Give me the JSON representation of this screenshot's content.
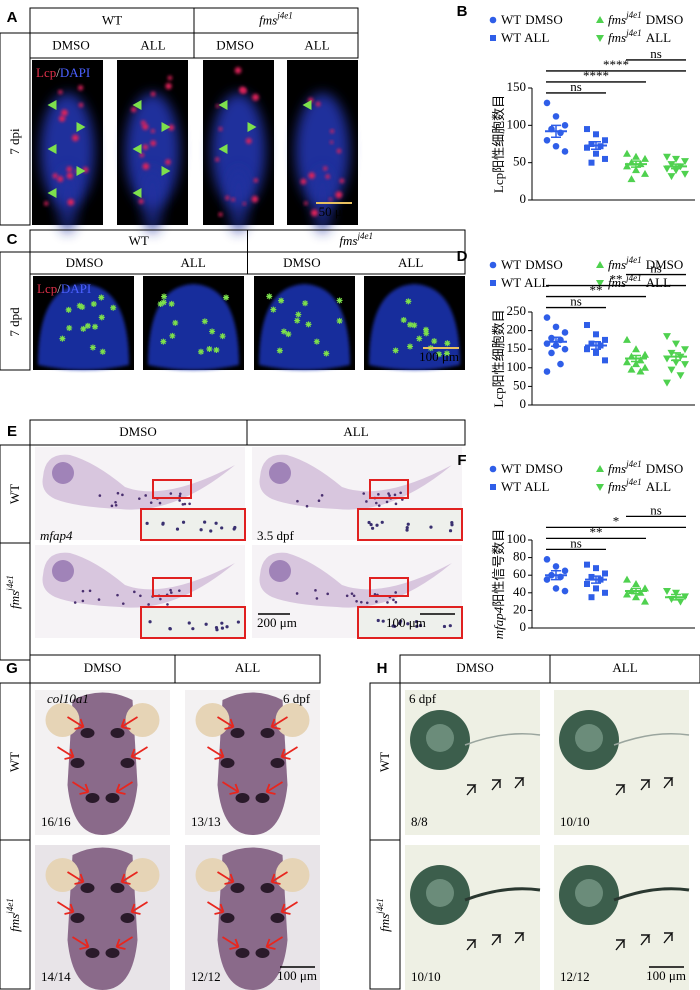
{
  "panel_A": {
    "label": "A",
    "groups": [
      {
        "genotype": "WT"
      },
      {
        "genotype": "fms",
        "allele": "j4e1"
      }
    ],
    "treatments": [
      "DMSO",
      "ALL",
      "DMSO",
      "ALL"
    ],
    "timepoint": "7 dpi",
    "stain": {
      "lcp": "Lcp",
      "sep": "/",
      "dapi": "DAPI"
    },
    "scale_bar": "50 μm"
  },
  "panel_C": {
    "label": "C",
    "groups": [
      {
        "genotype": "WT"
      },
      {
        "genotype": "fms",
        "allele": "j4e1"
      }
    ],
    "treatments": [
      "DMSO",
      "ALL",
      "DMSO",
      "ALL"
    ],
    "timepoint": "7 dpd",
    "stain": {
      "lcp": "Lcp",
      "sep": "/",
      "dapi": "DAPI"
    },
    "scale_bar": "100 μm"
  },
  "panel_E": {
    "label": "E",
    "treatments": [
      "DMSO",
      "ALL"
    ],
    "rows": [
      {
        "genotype": "WT"
      },
      {
        "genotype": "fms",
        "allele": "j4e1"
      }
    ],
    "probe": "mfap4",
    "stage": "3.5 dpf",
    "scale_bars": [
      "200 μm",
      "100 μm"
    ]
  },
  "panel_G": {
    "label": "G",
    "treatments": [
      "DMSO",
      "ALL"
    ],
    "rows": [
      {
        "genotype": "WT"
      },
      {
        "genotype": "fms",
        "allele": "j4e1"
      }
    ],
    "probe": "col10a1",
    "stage": "6 dpf",
    "counts": [
      "16/16",
      "13/13",
      "14/14",
      "12/12"
    ],
    "scale_bar": "100 μm"
  },
  "panel_H": {
    "label": "H",
    "treatments": [
      "DMSO",
      "ALL"
    ],
    "rows": [
      {
        "genotype": "WT"
      },
      {
        "genotype": "fms",
        "allele": "j4e1"
      }
    ],
    "stage": "6 dpf",
    "counts": [
      "8/8",
      "10/10",
      "10/10",
      "12/12"
    ],
    "scale_bar": "100 μm"
  },
  "chart_data": [
    {
      "type": "dot",
      "label": "B",
      "y_label": "Lcp阳性细胞数目",
      "ylim": [
        0,
        150
      ],
      "yticks": [
        0,
        50,
        100,
        150
      ],
      "series": [
        {
          "genotype": "WT",
          "treatment": "DMSO",
          "marker": "circle",
          "color": "#2f5ee8",
          "values": [
            130,
            112,
            100,
            95,
            90,
            80,
            72,
            65
          ],
          "mean": 92,
          "error": 8
        },
        {
          "genotype": "WT",
          "treatment": "ALL",
          "marker": "square",
          "color": "#2f5ee8",
          "values": [
            95,
            88,
            80,
            75,
            72,
            70,
            62,
            55,
            50
          ],
          "mean": 73,
          "error": 5
        },
        {
          "genotype": "fms",
          "allele": "j4e1",
          "treatment": "DMSO",
          "marker": "triangle-up",
          "color": "#4fd14f",
          "values": [
            62,
            58,
            55,
            50,
            48,
            45,
            40,
            35,
            28
          ],
          "mean": 48,
          "error": 4
        },
        {
          "genotype": "fms",
          "allele": "j4e1",
          "treatment": "ALL",
          "marker": "triangle-down",
          "color": "#4fd14f",
          "values": [
            58,
            55,
            52,
            48,
            45,
            42,
            40,
            35,
            32
          ],
          "mean": 45,
          "error": 3
        }
      ],
      "significance": [
        {
          "from": 0,
          "to": 1,
          "label": "ns"
        },
        {
          "from": 0,
          "to": 2,
          "label": "****"
        },
        {
          "from": 0,
          "to": 3,
          "label": "****"
        },
        {
          "from": 2,
          "to": 3,
          "label": "ns"
        }
      ]
    },
    {
      "type": "dot",
      "label": "D",
      "y_label": "Lcp阳性细胞数目",
      "ylim": [
        0,
        250
      ],
      "yticks": [
        0,
        50,
        100,
        150,
        200,
        250
      ],
      "series": [
        {
          "genotype": "WT",
          "treatment": "DMSO",
          "marker": "circle",
          "color": "#2f5ee8",
          "values": [
            235,
            210,
            195,
            180,
            175,
            165,
            160,
            150,
            140,
            110,
            90
          ],
          "mean": 170,
          "error": 12
        },
        {
          "genotype": "WT",
          "treatment": "ALL",
          "marker": "square",
          "color": "#2f5ee8",
          "values": [
            215,
            190,
            175,
            165,
            160,
            150,
            140,
            120
          ],
          "mean": 160,
          "error": 10
        },
        {
          "genotype": "fms",
          "allele": "j4e1",
          "treatment": "DMSO",
          "marker": "triangle-up",
          "color": "#4fd14f",
          "values": [
            175,
            150,
            135,
            130,
            120,
            115,
            110,
            100,
            95,
            90
          ],
          "mean": 125,
          "error": 8
        },
        {
          "genotype": "fms",
          "allele": "j4e1",
          "treatment": "ALL",
          "marker": "triangle-down",
          "color": "#4fd14f",
          "values": [
            185,
            165,
            150,
            140,
            130,
            125,
            115,
            110,
            95,
            80,
            60
          ],
          "mean": 130,
          "error": 10
        }
      ],
      "significance": [
        {
          "from": 0,
          "to": 1,
          "label": "ns"
        },
        {
          "from": 0,
          "to": 2,
          "label": "**"
        },
        {
          "from": 0,
          "to": 3,
          "label": "**"
        },
        {
          "from": 2,
          "to": 3,
          "label": "ns"
        }
      ]
    },
    {
      "type": "dot",
      "label": "F",
      "y_label_probe": "mfap4",
      "y_label": "阳性信号数目",
      "ylim": [
        0,
        100
      ],
      "yticks": [
        0,
        20,
        40,
        60,
        80,
        100
      ],
      "series": [
        {
          "genotype": "WT",
          "treatment": "DMSO",
          "marker": "circle",
          "color": "#2f5ee8",
          "values": [
            78,
            70,
            65,
            60,
            58,
            55,
            45,
            42
          ],
          "mean": 60,
          "error": 5
        },
        {
          "genotype": "WT",
          "treatment": "ALL",
          "marker": "square",
          "color": "#2f5ee8",
          "values": [
            72,
            68,
            62,
            58,
            55,
            50,
            45,
            40,
            35
          ],
          "mean": 55,
          "error": 4
        },
        {
          "genotype": "fms",
          "allele": "j4e1",
          "treatment": "DMSO",
          "marker": "triangle-up",
          "color": "#4fd14f",
          "values": [
            55,
            50,
            45,
            42,
            40,
            38,
            35,
            30
          ],
          "mean": 42,
          "error": 3
        },
        {
          "genotype": "fms",
          "allele": "j4e1",
          "treatment": "ALL",
          "marker": "triangle-down",
          "color": "#4fd14f",
          "values": [
            42,
            40,
            36,
            33,
            30
          ],
          "mean": 35,
          "error": 3
        }
      ],
      "significance": [
        {
          "from": 0,
          "to": 1,
          "label": "ns"
        },
        {
          "from": 0,
          "to": 2,
          "label": "**"
        },
        {
          "from": 0,
          "to": 3,
          "label": "*"
        },
        {
          "from": 2,
          "to": 3,
          "label": "ns"
        }
      ]
    }
  ]
}
